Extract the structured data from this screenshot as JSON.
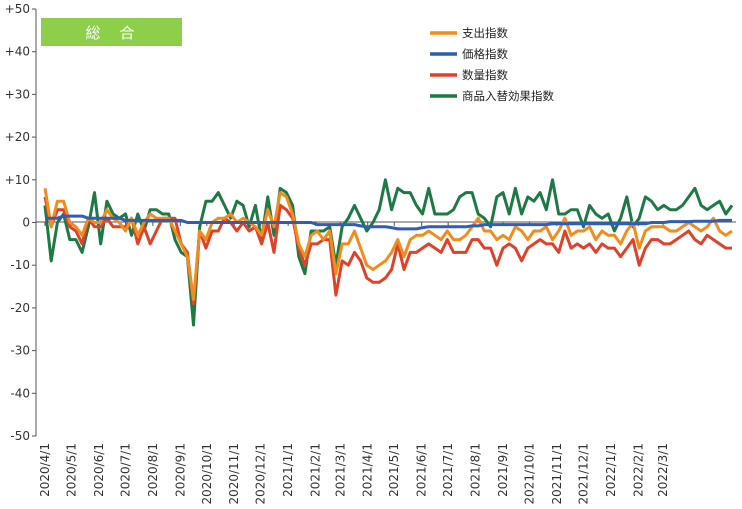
{
  "chart_data": {
    "type": "line",
    "title": "",
    "badge": "総　合",
    "ylim": [
      -50,
      50
    ],
    "yticks": [
      "+50",
      "+40",
      "+30",
      "+20",
      "+10",
      "0",
      "-10",
      "-20",
      "-30",
      "-40",
      "-50"
    ],
    "xticks": [
      "2020/4/1",
      "2020/5/1",
      "2020/6/1",
      "2020/7/1",
      "2020/8/1",
      "2020/9/1",
      "2020/10/1",
      "2020/11/1",
      "2020/12/1",
      "2021/1/1",
      "2021/2/1",
      "2021/3/1",
      "2021/4/1",
      "2021/5/1",
      "2021/6/1",
      "2021/7/1",
      "2021/8/1",
      "2021/9/1",
      "2021/10/1",
      "2021/11/1",
      "2021/12/1",
      "2022/1/1",
      "2022/2/1",
      "2022/3/1"
    ],
    "x_start": "2020-04-01",
    "x_step_days": 7,
    "legend_position": "top-right",
    "grid": false,
    "series": [
      {
        "name": "支出指数",
        "color": "#F28C1E",
        "values": [
          8,
          -1,
          5,
          5,
          0,
          -1,
          -3,
          1,
          0,
          0,
          3,
          1,
          0,
          -2,
          1,
          -3,
          0,
          2,
          1,
          1,
          1,
          -2,
          -5,
          -8,
          -18,
          -2,
          -4,
          0,
          1,
          1,
          2,
          0,
          1,
          0,
          -1,
          -3,
          3,
          -1,
          7,
          6,
          2,
          -5,
          -8,
          -3,
          -2,
          -4,
          -2,
          -12,
          -5,
          -5,
          -2,
          -6,
          -10,
          -11,
          -10,
          -9,
          -7,
          -4,
          -8,
          -4,
          -3,
          -3,
          -2,
          -3,
          -4,
          -2,
          -4,
          -4,
          -3,
          -1,
          1,
          -2,
          -2,
          -4,
          -3,
          -4,
          -1,
          -2,
          -4,
          -2,
          -2,
          -1,
          -4,
          -2,
          1,
          -3,
          -2,
          -2,
          -1,
          -4,
          -2,
          -3,
          -3,
          -5,
          -2,
          0,
          -6,
          -2,
          -1,
          -1,
          -1,
          -2,
          -2,
          -1,
          0,
          -1,
          -2,
          -1,
          1,
          -2,
          -3,
          -2
        ]
      },
      {
        "name": "価格指数",
        "color": "#2F5DB8",
        "values": [
          1,
          1,
          1,
          1.5,
          1.5,
          1.5,
          1.5,
          1,
          1,
          1,
          1,
          1,
          1,
          0.5,
          0.5,
          0.5,
          0.5,
          0.5,
          0.5,
          0.5,
          0.5,
          0.5,
          0.5,
          0,
          0,
          0,
          0,
          0,
          0,
          0,
          0,
          0,
          0,
          0,
          0,
          0,
          0,
          0,
          0,
          0,
          0,
          0,
          0,
          0,
          -0.5,
          -0.5,
          -0.5,
          -0.5,
          -0.5,
          -0.5,
          -0.5,
          -0.8,
          -1,
          -1,
          -1,
          -1,
          -1.2,
          -1.5,
          -1.5,
          -1.5,
          -1.5,
          -1.2,
          -1,
          -1,
          -1,
          -1,
          -1,
          -1,
          -1,
          -0.8,
          -0.8,
          -0.5,
          -0.5,
          -0.5,
          -0.5,
          -0.5,
          -0.5,
          -0.5,
          -0.5,
          -0.5,
          -0.5,
          -0.5,
          -0.3,
          -0.3,
          -0.3,
          -0.3,
          -0.3,
          -0.3,
          -0.3,
          -0.3,
          -0.3,
          -0.3,
          -0.3,
          -0.3,
          -0.3,
          -0.3,
          -0.3,
          -0.3,
          0,
          0,
          0,
          0.2,
          0.2,
          0.2,
          0.2,
          0.3,
          0.3,
          0.3,
          0.3,
          0.5,
          0.5,
          0.5
        ]
      },
      {
        "name": "数量指数",
        "color": "#E0412A",
        "values": [
          6,
          -1,
          3,
          3,
          -1,
          -2,
          -5,
          1,
          -1,
          -1,
          1,
          -1,
          -1,
          -1,
          1,
          -5,
          -1,
          -5,
          -2,
          1,
          1,
          1,
          -5,
          -7,
          -19,
          -2,
          -6,
          -2,
          -2,
          1,
          0,
          -2,
          0,
          -2,
          -1,
          -5,
          0,
          -7,
          4,
          3,
          1,
          -6,
          -10,
          -5,
          -5,
          -4,
          -4,
          -17,
          -9,
          -10,
          -7,
          -9,
          -13,
          -14,
          -14,
          -13,
          -11,
          -5,
          -11,
          -7,
          -7,
          -6,
          -5,
          -6,
          -7,
          -4,
          -7,
          -7,
          -7,
          -4,
          -4,
          -6,
          -6,
          -10,
          -6,
          -5,
          -6,
          -9,
          -6,
          -5,
          -4,
          -5,
          -5,
          -7,
          -2,
          -6,
          -5,
          -6,
          -5,
          -7,
          -5,
          -6,
          -6,
          -8,
          -6,
          -4,
          -10,
          -6,
          -4,
          -4,
          -5,
          -5,
          -4,
          -3,
          -2,
          -4,
          -5,
          -3,
          -4,
          -5,
          -6,
          -6
        ]
      },
      {
        "name": "商品入替効果指数",
        "color": "#1E7A45",
        "values": [
          4,
          -9,
          0,
          2,
          -4,
          -4,
          -7,
          -1,
          7,
          -5,
          5,
          2,
          1,
          2,
          -3,
          2,
          -2,
          3,
          3,
          2,
          2,
          -4,
          -7,
          -8,
          -24,
          -1,
          5,
          5,
          7,
          4,
          1,
          5,
          4,
          -1,
          4,
          -4,
          6,
          -3,
          8,
          7,
          4,
          -8,
          -12,
          -2,
          -2,
          -2,
          -1,
          -10,
          -1,
          1,
          4,
          1,
          -2,
          0,
          3,
          10,
          3,
          8,
          7,
          7,
          4,
          2,
          8,
          2,
          2,
          2,
          3,
          6,
          7,
          7,
          2,
          1,
          -1,
          6,
          7,
          2,
          8,
          2,
          6,
          5,
          7,
          3,
          10,
          2,
          2,
          3,
          3,
          -1,
          4,
          2,
          1,
          2,
          -2,
          1,
          6,
          -1,
          1,
          6,
          5,
          3,
          4,
          3,
          3,
          4,
          6,
          8,
          4,
          3,
          4,
          5,
          2,
          4
        ]
      }
    ]
  }
}
